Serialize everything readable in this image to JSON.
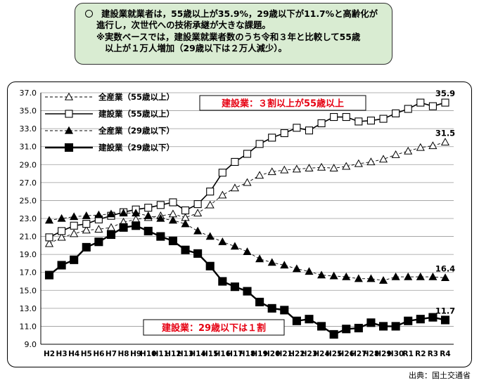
{
  "summary": {
    "line1": "建設業就業者は，55歳以上が35.9%，29歳以下が11.7%と高齢化が",
    "line2": "進行し，次世代への技術承継が大きな課題。",
    "line3": "※実数ベースでは，建設業就業者数のうち令和３年と比較して55歳",
    "line4": "以上が１万人増加（29歳以下は２万人減少）。"
  },
  "source": "出典：国土交通省",
  "colors": {
    "box_bg": "#d9ecd2",
    "callout_text": "#e60012",
    "series": "#000000"
  },
  "chart_data": {
    "type": "line",
    "x": [
      "H2",
      "H3",
      "H4",
      "H5",
      "H6",
      "H7",
      "H8",
      "H9",
      "H10",
      "H11",
      "H12",
      "H13",
      "H14",
      "H15",
      "H16",
      "H17",
      "H18",
      "H19",
      "H20",
      "H21",
      "H22",
      "H23",
      "H24",
      "H25",
      "H26",
      "H27",
      "H28",
      "H29",
      "H30",
      "R1",
      "R2",
      "R3",
      "R4"
    ],
    "ylim": [
      9.0,
      37.0
    ],
    "yticks": [
      "37.0",
      "35.0",
      "33.0",
      "31.0",
      "29.0",
      "27.0",
      "25.0",
      "23.0",
      "21.0",
      "19.0",
      "17.0",
      "15.0",
      "13.0",
      "11.0",
      "9.0"
    ],
    "series": [
      {
        "name": "全産業（55歳以上）",
        "marker": "triangle-open",
        "line": "dashed",
        "values": [
          20.2,
          20.9,
          21.3,
          21.7,
          21.8,
          22.0,
          22.6,
          22.9,
          23.1,
          23.3,
          23.5,
          23.1,
          23.6,
          24.5,
          25.6,
          26.4,
          27.0,
          27.8,
          28.2,
          28.4,
          28.5,
          28.6,
          28.7,
          28.6,
          28.8,
          29.1,
          29.3,
          29.6,
          30.1,
          30.5,
          30.9,
          31.1,
          31.5
        ]
      },
      {
        "name": "建設業（55歳以上）",
        "marker": "square-open",
        "line": "solid",
        "values": [
          20.9,
          21.6,
          22.2,
          22.4,
          22.9,
          23.3,
          23.7,
          24.0,
          24.2,
          24.5,
          24.8,
          23.9,
          24.6,
          26.0,
          28.1,
          29.3,
          30.2,
          31.3,
          32.0,
          32.5,
          33.1,
          32.8,
          33.6,
          34.3,
          34.3,
          33.8,
          33.9,
          34.1,
          34.7,
          35.2,
          35.9,
          35.5,
          35.9
        ]
      },
      {
        "name": "全産業（29歳以下）",
        "marker": "triangle-filled",
        "line": "dashed",
        "values": [
          22.8,
          23.0,
          23.2,
          23.3,
          23.4,
          23.5,
          23.6,
          23.6,
          23.3,
          23.0,
          22.8,
          22.4,
          21.6,
          21.0,
          20.4,
          19.9,
          19.3,
          18.5,
          18.1,
          17.8,
          17.4,
          17.1,
          16.7,
          16.6,
          16.5,
          16.3,
          16.3,
          16.1,
          16.5,
          16.5,
          16.5,
          16.5,
          16.4
        ]
      },
      {
        "name": "建設業（29歳以下）",
        "marker": "square-filled",
        "line": "solid",
        "values": [
          16.7,
          17.8,
          18.4,
          19.8,
          20.4,
          21.2,
          22.0,
          22.2,
          21.6,
          21.0,
          20.5,
          19.5,
          19.1,
          17.7,
          16.0,
          15.4,
          14.9,
          13.7,
          13.0,
          12.8,
          11.6,
          11.8,
          11.0,
          10.1,
          10.7,
          10.8,
          11.4,
          11.0,
          11.0,
          11.6,
          11.8,
          12.0,
          11.7
        ]
      }
    ],
    "end_labels": [
      "31.5",
      "35.9",
      "16.4",
      "11.7"
    ],
    "annotations": [
      "建設業：３割以上が55歳以上",
      "建設業：29歳以下は１割"
    ],
    "grid": "horizontal",
    "legend_position": "top-left"
  }
}
